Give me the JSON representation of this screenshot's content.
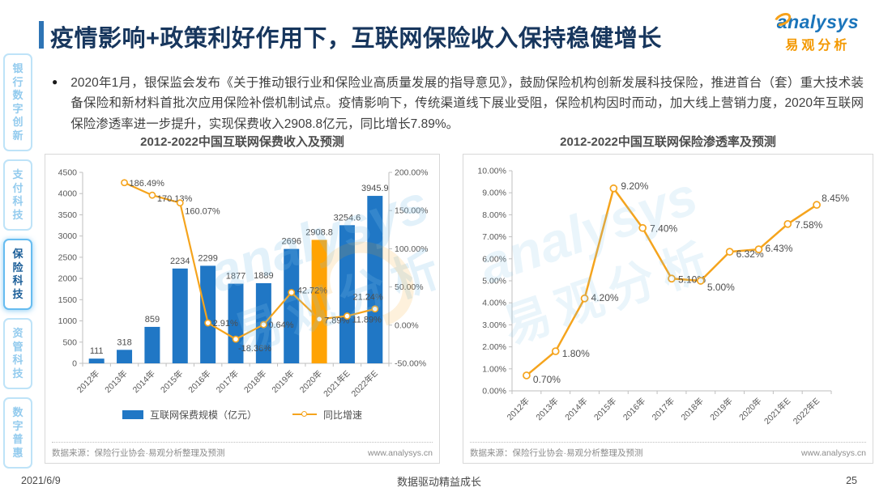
{
  "page": {
    "header": {
      "title": "疫情影响+政策利好作用下，互联网保险收入保持稳健增长",
      "logo_brand": "analysys",
      "logo_cn": "易观分析"
    },
    "sidebar": [
      {
        "label": "银行数字创新",
        "active": false
      },
      {
        "label": "支付科技",
        "active": false
      },
      {
        "label": "保险科技",
        "active": true
      },
      {
        "label": "资管科技",
        "active": false
      },
      {
        "label": "数字普惠",
        "active": false
      }
    ],
    "bullet_text": "2020年1月，银保监会发布《关于推动银行业和保险业高质量发展的指导意见》，鼓励保险机构创新发展科技保险，推进首台（套）重大技术装备保险和新材料首批次应用保险补偿机制试点。疫情影响下，传统渠道线下展业受阻，保险机构因时而动，加大线上营销力度，2020年互联网保险渗透率进一步提升，实现保费收入2908.8亿元，同比增长7.89%。",
    "watermark": {
      "line1": "analysys",
      "line2": "易观分析"
    },
    "footer": {
      "date": "2021/6/9",
      "slogan": "数据驱动精益成长",
      "page_number": "25"
    }
  },
  "chart_data": [
    {
      "type": "bar",
      "title": "2012-2022中国互联网保费收入及预测",
      "categories": [
        "2012年",
        "2013年",
        "2014年",
        "2015年",
        "2016年",
        "2017年",
        "2018年",
        "2019年",
        "2020年",
        "2021年E",
        "2022年E"
      ],
      "series": [
        {
          "name": "互联网保费规模（亿元）",
          "type": "bar",
          "values": [
            111,
            318,
            859,
            2234,
            2299,
            1877,
            1889,
            2696,
            2908.8,
            3254.6,
            3945.9
          ],
          "labels": [
            "111",
            "318",
            "859",
            "2234",
            "2299",
            "1877",
            "1889",
            "2696",
            "2908.8",
            "3254.6",
            "3945.9"
          ],
          "color": "#2077C5",
          "highlight_index": 8,
          "highlight_color": "#FFA303"
        },
        {
          "name": "同比增速",
          "type": "line",
          "axis": "right",
          "values": [
            null,
            186.49,
            170.13,
            160.07,
            2.91,
            -18.36,
            0.64,
            42.72,
            7.89,
            11.89,
            21.24
          ],
          "labels": [
            null,
            "186.49%",
            "170.13%",
            "160.07%",
            "2.91%",
            "-18.36%",
            "0.64%",
            "42.72%",
            "7.89%",
            "11.89%",
            "21.24%"
          ],
          "color": "#F5A41D"
        }
      ],
      "left_axis": {
        "min": 0,
        "max": 4500,
        "ticks": [
          "0",
          "500",
          "1000",
          "1500",
          "2000",
          "2500",
          "3000",
          "3500",
          "4000",
          "4500"
        ]
      },
      "right_axis": {
        "min": -50,
        "max": 200,
        "ticks": [
          "-50.00%",
          "0.00%",
          "50.00%",
          "100.00%",
          "150.00%",
          "200.00%"
        ]
      },
      "legend_position": "bottom",
      "grid": false,
      "source": "数据来源：保险行业协会·易观分析整理及预测",
      "website": "www.analysys.cn"
    },
    {
      "type": "line",
      "title": "2012-2022中国互联网保险渗透率及预测",
      "categories": [
        "2012年",
        "2013年",
        "2014年",
        "2015年",
        "2016年",
        "2017年",
        "2018年",
        "2019年",
        "2020年",
        "2021年E",
        "2022年E"
      ],
      "values": [
        0.7,
        1.8,
        4.2,
        9.2,
        7.4,
        5.1,
        5.0,
        6.32,
        6.43,
        7.58,
        8.45
      ],
      "labels": [
        "0.70%",
        "1.80%",
        "4.20%",
        "9.20%",
        "7.40%",
        "5.10%",
        "5.00%",
        "6.32%",
        "6.43%",
        "7.58%",
        "8.45%"
      ],
      "color": "#F5A41D",
      "y_axis": {
        "min": 0,
        "max": 10,
        "ticks": [
          "0.00%",
          "1.00%",
          "2.00%",
          "3.00%",
          "4.00%",
          "5.00%",
          "6.00%",
          "7.00%",
          "8.00%",
          "9.00%",
          "10.00%"
        ]
      },
      "grid": false,
      "source": "数据来源：保险行业协会·易观分析整理及预测",
      "website": "www.analysys.cn"
    }
  ]
}
